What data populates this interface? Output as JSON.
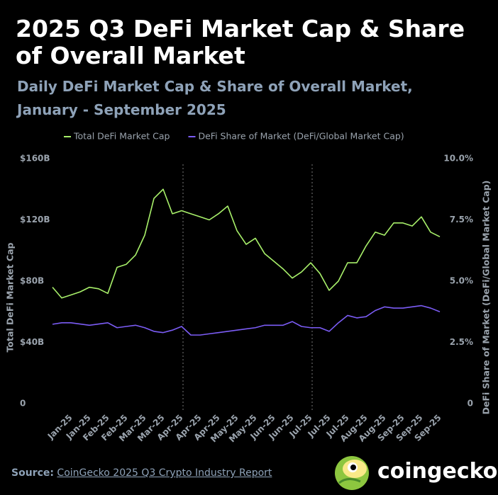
{
  "chart_data": {
    "type": "line",
    "title": "2025 Q3 DeFi Market Cap & Share of Overall Market",
    "subtitle": "Daily DeFi Market Cap & Share of Overall Market, January - September 2025",
    "y_label": "Total DeFi Market Cap",
    "y2_label": "DeFi Share of Market (DeFi/Global Market Cap)",
    "source_label": "Source:",
    "source": "CoinGecko 2025 Q3 Crypto Industry Report",
    "brand": "coingecko",
    "categories": [
      null,
      null,
      "Jan-25",
      null,
      "Jan-25",
      null,
      "Feb-25",
      null,
      "Feb-25",
      null,
      "Mar-25",
      null,
      "Mar-25",
      null,
      "Apr-25",
      null,
      "Apr-25",
      null,
      "Apr-25",
      null,
      "May-25",
      null,
      "May-25",
      null,
      "Jun-25",
      null,
      "Jun-25",
      null,
      "Jul-25",
      null,
      "Jul-25",
      null,
      "Jul-25",
      null,
      "Aug-25",
      null,
      "Aug-25",
      null,
      "Sep-25",
      null,
      "Sep-25",
      null,
      "Sep-25"
    ],
    "series": [
      {
        "name": "Total DeFi Market Cap",
        "color": "#a8f06a",
        "axis": "y",
        "values": [
          76,
          69,
          71,
          73,
          76,
          75,
          72,
          89,
          91,
          97,
          110,
          134,
          140,
          124,
          126,
          124,
          122,
          120,
          124,
          129,
          113,
          104,
          108,
          98,
          93,
          88,
          82,
          86,
          92,
          85,
          74,
          80,
          92,
          92,
          103,
          112,
          110,
          118,
          118,
          116,
          122,
          112,
          109
        ]
      },
      {
        "name": "DeFi Share of Market (DeFi/Global Market Cap)",
        "color": "#7b5cf5",
        "axis": "y2",
        "values": [
          3.24,
          3.3,
          3.3,
          3.25,
          3.2,
          3.25,
          3.3,
          3.1,
          3.15,
          3.2,
          3.1,
          2.95,
          2.9,
          3.0,
          3.15,
          2.8,
          2.8,
          2.85,
          2.9,
          2.95,
          3.0,
          3.05,
          3.1,
          3.2,
          3.2,
          3.2,
          3.35,
          3.15,
          3.1,
          3.1,
          2.95,
          3.3,
          3.6,
          3.5,
          3.55,
          3.8,
          3.95,
          3.9,
          3.9,
          3.95,
          4.0,
          3.9,
          3.75
        ]
      }
    ],
    "ylim": [
      0,
      160
    ],
    "yticks": [
      0,
      {
        "value": 40,
        "label": "$40B"
      },
      {
        "value": 80,
        "label": "$80B"
      },
      {
        "value": 120,
        "label": "$120B"
      },
      {
        "value": 160,
        "label": "$160B"
      }
    ],
    "y2lim": [
      0,
      10
    ],
    "y2ticks": [
      0,
      {
        "value": 2.5,
        "label": "2.5%"
      },
      {
        "value": 5,
        "label": "5.0%"
      },
      {
        "value": 7.5,
        "label": "7.5%"
      },
      {
        "value": 10,
        "label": "10.0%"
      }
    ],
    "grid": false,
    "legend": "top"
  }
}
